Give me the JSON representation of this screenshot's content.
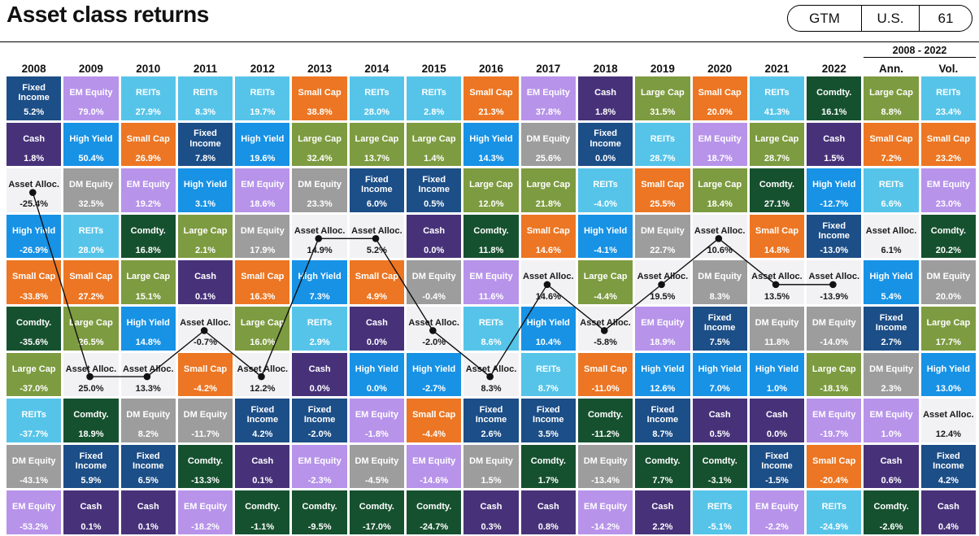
{
  "header": {
    "title": "Asset class returns",
    "badge": {
      "gtm": "GTM",
      "region": "U.S.",
      "page": "61"
    }
  },
  "chart_data": {
    "type": "heatmap",
    "title": "Asset class returns",
    "period_label": "2008 - 2022",
    "summary_columns": [
      "Ann.",
      "Vol."
    ],
    "highlight_asset": "Asset Alloc.",
    "line_overlay": "black dotted polyline tracing Asset Alloc. cell across the 15 year columns",
    "line_column_count": 15,
    "line_color": "#111111",
    "colors": {
      "Large Cap": "#7d9b40",
      "Small Cap": "#ec7623",
      "EM Equity": "#b793ea",
      "DM Equity": "#9d9d9d",
      "REITs": "#56c4e9",
      "Fixed Income": "#1c4e87",
      "High Yield": "#1792e5",
      "Cash": "#47327a",
      "Comdty.": "#16512f",
      "Asset Alloc.": "#f2f2f4"
    },
    "text_colors": {
      "default": "#ffffff",
      "highlight": "#1a1a1a"
    },
    "columns": [
      {
        "label": "2008",
        "cells": [
          {
            "asset": "Fixed Income",
            "value": "5.2%"
          },
          {
            "asset": "Cash",
            "value": "1.8%"
          },
          {
            "asset": "Asset Alloc.",
            "value": "-25.4%"
          },
          {
            "asset": "High Yield",
            "value": "-26.9%"
          },
          {
            "asset": "Small Cap",
            "value": "-33.8%"
          },
          {
            "asset": "Comdty.",
            "value": "-35.6%"
          },
          {
            "asset": "Large Cap",
            "value": "-37.0%"
          },
          {
            "asset": "REITs",
            "value": "-37.7%"
          },
          {
            "asset": "DM Equity",
            "value": "-43.1%"
          },
          {
            "asset": "EM Equity",
            "value": "-53.2%"
          }
        ]
      },
      {
        "label": "2009",
        "cells": [
          {
            "asset": "EM Equity",
            "value": "79.0%"
          },
          {
            "asset": "High Yield",
            "value": "50.4%"
          },
          {
            "asset": "DM Equity",
            "value": "32.5%"
          },
          {
            "asset": "REITs",
            "value": "28.0%"
          },
          {
            "asset": "Small Cap",
            "value": "27.2%"
          },
          {
            "asset": "Large Cap",
            "value": "26.5%"
          },
          {
            "asset": "Asset Alloc.",
            "value": "25.0%"
          },
          {
            "asset": "Comdty.",
            "value": "18.9%"
          },
          {
            "asset": "Fixed Income",
            "value": "5.9%"
          },
          {
            "asset": "Cash",
            "value": "0.1%"
          }
        ]
      },
      {
        "label": "2010",
        "cells": [
          {
            "asset": "REITs",
            "value": "27.9%"
          },
          {
            "asset": "Small Cap",
            "value": "26.9%"
          },
          {
            "asset": "EM Equity",
            "value": "19.2%"
          },
          {
            "asset": "Comdty.",
            "value": "16.8%"
          },
          {
            "asset": "Large Cap",
            "value": "15.1%"
          },
          {
            "asset": "High Yield",
            "value": "14.8%"
          },
          {
            "asset": "Asset Alloc.",
            "value": "13.3%"
          },
          {
            "asset": "DM Equity",
            "value": "8.2%"
          },
          {
            "asset": "Fixed Income",
            "value": "6.5%"
          },
          {
            "asset": "Cash",
            "value": "0.1%"
          }
        ]
      },
      {
        "label": "2011",
        "cells": [
          {
            "asset": "REITs",
            "value": "8.3%"
          },
          {
            "asset": "Fixed Income",
            "value": "7.8%"
          },
          {
            "asset": "High Yield",
            "value": "3.1%"
          },
          {
            "asset": "Large Cap",
            "value": "2.1%"
          },
          {
            "asset": "Cash",
            "value": "0.1%"
          },
          {
            "asset": "Asset Alloc.",
            "value": "-0.7%"
          },
          {
            "asset": "Small Cap",
            "value": "-4.2%"
          },
          {
            "asset": "DM Equity",
            "value": "-11.7%"
          },
          {
            "asset": "Comdty.",
            "value": "-13.3%"
          },
          {
            "asset": "EM Equity",
            "value": "-18.2%"
          }
        ]
      },
      {
        "label": "2012",
        "cells": [
          {
            "asset": "REITs",
            "value": "19.7%"
          },
          {
            "asset": "High Yield",
            "value": "19.6%"
          },
          {
            "asset": "EM Equity",
            "value": "18.6%"
          },
          {
            "asset": "DM Equity",
            "value": "17.9%"
          },
          {
            "asset": "Small Cap",
            "value": "16.3%"
          },
          {
            "asset": "Large Cap",
            "value": "16.0%"
          },
          {
            "asset": "Asset Alloc.",
            "value": "12.2%"
          },
          {
            "asset": "Fixed Income",
            "value": "4.2%"
          },
          {
            "asset": "Cash",
            "value": "0.1%"
          },
          {
            "asset": "Comdty.",
            "value": "-1.1%"
          }
        ]
      },
      {
        "label": "2013",
        "cells": [
          {
            "asset": "Small Cap",
            "value": "38.8%"
          },
          {
            "asset": "Large Cap",
            "value": "32.4%"
          },
          {
            "asset": "DM Equity",
            "value": "23.3%"
          },
          {
            "asset": "Asset Alloc.",
            "value": "14.9%"
          },
          {
            "asset": "High Yield",
            "value": "7.3%"
          },
          {
            "asset": "REITs",
            "value": "2.9%"
          },
          {
            "asset": "Cash",
            "value": "0.0%"
          },
          {
            "asset": "Fixed Income",
            "value": "-2.0%"
          },
          {
            "asset": "EM Equity",
            "value": "-2.3%"
          },
          {
            "asset": "Comdty.",
            "value": "-9.5%"
          }
        ]
      },
      {
        "label": "2014",
        "cells": [
          {
            "asset": "REITs",
            "value": "28.0%"
          },
          {
            "asset": "Large Cap",
            "value": "13.7%"
          },
          {
            "asset": "Fixed Income",
            "value": "6.0%"
          },
          {
            "asset": "Asset Alloc.",
            "value": "5.2%"
          },
          {
            "asset": "Small Cap",
            "value": "4.9%"
          },
          {
            "asset": "Cash",
            "value": "0.0%"
          },
          {
            "asset": "High Yield",
            "value": "0.0%"
          },
          {
            "asset": "EM Equity",
            "value": "-1.8%"
          },
          {
            "asset": "DM Equity",
            "value": "-4.5%"
          },
          {
            "asset": "Comdty.",
            "value": "-17.0%"
          }
        ]
      },
      {
        "label": "2015",
        "cells": [
          {
            "asset": "REITs",
            "value": "2.8%"
          },
          {
            "asset": "Large Cap",
            "value": "1.4%"
          },
          {
            "asset": "Fixed Income",
            "value": "0.5%"
          },
          {
            "asset": "Cash",
            "value": "0.0%"
          },
          {
            "asset": "DM Equity",
            "value": "-0.4%"
          },
          {
            "asset": "Asset Alloc.",
            "value": "-2.0%"
          },
          {
            "asset": "High Yield",
            "value": "-2.7%"
          },
          {
            "asset": "Small Cap",
            "value": "-4.4%"
          },
          {
            "asset": "EM Equity",
            "value": "-14.6%"
          },
          {
            "asset": "Comdty.",
            "value": "-24.7%"
          }
        ]
      },
      {
        "label": "2016",
        "cells": [
          {
            "asset": "Small Cap",
            "value": "21.3%"
          },
          {
            "asset": "High Yield",
            "value": "14.3%"
          },
          {
            "asset": "Large Cap",
            "value": "12.0%"
          },
          {
            "asset": "Comdty.",
            "value": "11.8%"
          },
          {
            "asset": "EM Equity",
            "value": "11.6%"
          },
          {
            "asset": "REITs",
            "value": "8.6%"
          },
          {
            "asset": "Asset Alloc.",
            "value": "8.3%"
          },
          {
            "asset": "Fixed Income",
            "value": "2.6%"
          },
          {
            "asset": "DM Equity",
            "value": "1.5%"
          },
          {
            "asset": "Cash",
            "value": "0.3%"
          }
        ]
      },
      {
        "label": "2017",
        "cells": [
          {
            "asset": "EM Equity",
            "value": "37.8%"
          },
          {
            "asset": "DM Equity",
            "value": "25.6%"
          },
          {
            "asset": "Large Cap",
            "value": "21.8%"
          },
          {
            "asset": "Small Cap",
            "value": "14.6%"
          },
          {
            "asset": "Asset Alloc.",
            "value": "14.6%"
          },
          {
            "asset": "High Yield",
            "value": "10.4%"
          },
          {
            "asset": "REITs",
            "value": "8.7%"
          },
          {
            "asset": "Fixed Income",
            "value": "3.5%"
          },
          {
            "asset": "Comdty.",
            "value": "1.7%"
          },
          {
            "asset": "Cash",
            "value": "0.8%"
          }
        ]
      },
      {
        "label": "2018",
        "cells": [
          {
            "asset": "Cash",
            "value": "1.8%"
          },
          {
            "asset": "Fixed Income",
            "value": "0.0%"
          },
          {
            "asset": "REITs",
            "value": "-4.0%"
          },
          {
            "asset": "High Yield",
            "value": "-4.1%"
          },
          {
            "asset": "Large Cap",
            "value": "-4.4%"
          },
          {
            "asset": "Asset Alloc.",
            "value": "-5.8%"
          },
          {
            "asset": "Small Cap",
            "value": "-11.0%"
          },
          {
            "asset": "Comdty.",
            "value": "-11.2%"
          },
          {
            "asset": "DM Equity",
            "value": "-13.4%"
          },
          {
            "asset": "EM Equity",
            "value": "-14.2%"
          }
        ]
      },
      {
        "label": "2019",
        "cells": [
          {
            "asset": "Large Cap",
            "value": "31.5%"
          },
          {
            "asset": "REITs",
            "value": "28.7%"
          },
          {
            "asset": "Small Cap",
            "value": "25.5%"
          },
          {
            "asset": "DM Equity",
            "value": "22.7%"
          },
          {
            "asset": "Asset Alloc.",
            "value": "19.5%"
          },
          {
            "asset": "EM Equity",
            "value": "18.9%"
          },
          {
            "asset": "High Yield",
            "value": "12.6%"
          },
          {
            "asset": "Fixed Income",
            "value": "8.7%"
          },
          {
            "asset": "Comdty.",
            "value": "7.7%"
          },
          {
            "asset": "Cash",
            "value": "2.2%"
          }
        ]
      },
      {
        "label": "2020",
        "cells": [
          {
            "asset": "Small Cap",
            "value": "20.0%"
          },
          {
            "asset": "EM Equity",
            "value": "18.7%"
          },
          {
            "asset": "Large Cap",
            "value": "18.4%"
          },
          {
            "asset": "Asset Alloc.",
            "value": "10.6%"
          },
          {
            "asset": "DM Equity",
            "value": "8.3%"
          },
          {
            "asset": "Fixed Income",
            "value": "7.5%"
          },
          {
            "asset": "High Yield",
            "value": "7.0%"
          },
          {
            "asset": "Cash",
            "value": "0.5%"
          },
          {
            "asset": "Comdty.",
            "value": "-3.1%"
          },
          {
            "asset": "REITs",
            "value": "-5.1%"
          }
        ]
      },
      {
        "label": "2021",
        "cells": [
          {
            "asset": "REITs",
            "value": "41.3%"
          },
          {
            "asset": "Large Cap",
            "value": "28.7%"
          },
          {
            "asset": "Comdty.",
            "value": "27.1%"
          },
          {
            "asset": "Small Cap",
            "value": "14.8%"
          },
          {
            "asset": "Asset Alloc.",
            "value": "13.5%"
          },
          {
            "asset": "DM Equity",
            "value": "11.8%"
          },
          {
            "asset": "High Yield",
            "value": "1.0%"
          },
          {
            "asset": "Cash",
            "value": "0.0%"
          },
          {
            "asset": "Fixed Income",
            "value": "-1.5%"
          },
          {
            "asset": "EM Equity",
            "value": "-2.2%"
          }
        ]
      },
      {
        "label": "2022",
        "cells": [
          {
            "asset": "Comdty.",
            "value": "16.1%"
          },
          {
            "asset": "Cash",
            "value": "1.5%"
          },
          {
            "asset": "High Yield",
            "value": "-12.7%"
          },
          {
            "asset": "Fixed Income",
            "value": "-13.0%"
          },
          {
            "asset": "Asset Alloc.",
            "value": "-13.9%"
          },
          {
            "asset": "DM Equity",
            "value": "-14.0%"
          },
          {
            "asset": "Large Cap",
            "value": "-18.1%"
          },
          {
            "asset": "EM Equity",
            "value": "-19.7%"
          },
          {
            "asset": "Small Cap",
            "value": "-20.4%"
          },
          {
            "asset": "REITs",
            "value": "-24.9%"
          }
        ]
      },
      {
        "label": "Ann.",
        "cells": [
          {
            "asset": "Large Cap",
            "value": "8.8%"
          },
          {
            "asset": "Small Cap",
            "value": "7.2%"
          },
          {
            "asset": "REITs",
            "value": "6.6%"
          },
          {
            "asset": "Asset Alloc.",
            "value": "6.1%"
          },
          {
            "asset": "High Yield",
            "value": "5.4%"
          },
          {
            "asset": "Fixed Income",
            "value": "2.7%"
          },
          {
            "asset": "DM Equity",
            "value": "2.3%"
          },
          {
            "asset": "EM Equity",
            "value": "1.0%"
          },
          {
            "asset": "Cash",
            "value": "0.6%"
          },
          {
            "asset": "Comdty.",
            "value": "-2.6%"
          }
        ]
      },
      {
        "label": "Vol.",
        "cells": [
          {
            "asset": "REITs",
            "value": "23.4%"
          },
          {
            "asset": "Small Cap",
            "value": "23.2%"
          },
          {
            "asset": "EM Equity",
            "value": "23.0%"
          },
          {
            "asset": "Comdty.",
            "value": "20.2%"
          },
          {
            "asset": "DM Equity",
            "value": "20.0%"
          },
          {
            "asset": "Large Cap",
            "value": "17.7%"
          },
          {
            "asset": "High Yield",
            "value": "13.0%"
          },
          {
            "asset": "Asset Alloc.",
            "value": "12.4%"
          },
          {
            "asset": "Fixed Income",
            "value": "4.2%"
          },
          {
            "asset": "Cash",
            "value": "0.4%"
          }
        ]
      }
    ]
  }
}
